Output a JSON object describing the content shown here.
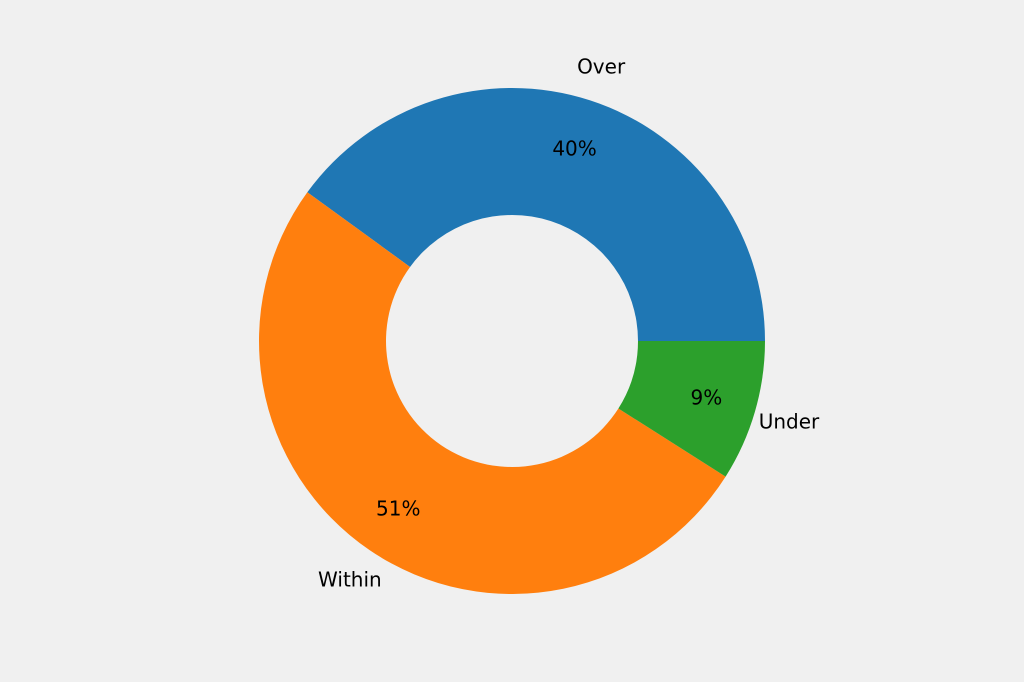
{
  "chart_data": {
    "type": "pie",
    "variant": "donut",
    "title": "",
    "categories": [
      "Over",
      "Within",
      "Under"
    ],
    "values": [
      40,
      51,
      9
    ],
    "value_labels": [
      "40%",
      "51%",
      "9%"
    ],
    "colors": [
      "#1f77b4",
      "#ff7f0e",
      "#2ca02c"
    ],
    "start_angle_deg": 0,
    "direction": "counterclockwise",
    "background": "#f0f0f0",
    "legend": "none"
  }
}
